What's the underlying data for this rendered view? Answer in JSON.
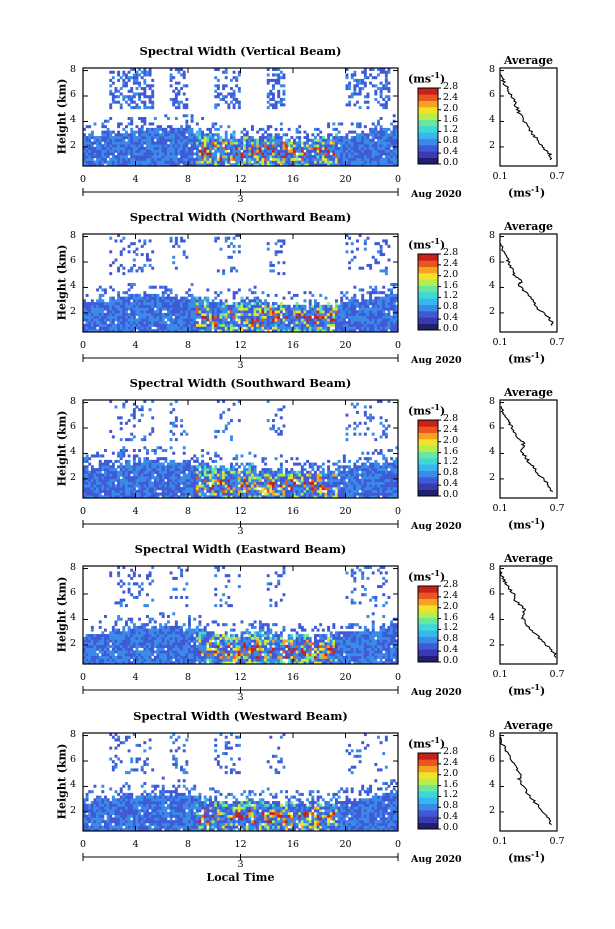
{
  "figure": {
    "ylabel": "Height (km)",
    "colorbar_unit": "(ms",
    "colorbar_unit_exp": "-1",
    "avg_title": "Average",
    "avg_xlabel": "(ms",
    "avg_xlabel_exp": "-1",
    "date_label": "Aug 2020",
    "day_label": "3",
    "xaxis_title": "Local Time",
    "colors": {
      "scale": [
        "#1f1f6e",
        "#3a3ab0",
        "#3f5ad6",
        "#3a8ae8",
        "#36b7ef",
        "#3fd8d8",
        "#6ae6a0",
        "#b8ee4a",
        "#f2e22a",
        "#f6a324",
        "#ea5520",
        "#c8201a"
      ],
      "missing": "#ffffff"
    }
  },
  "chart_data": [
    {
      "type": "heatmap",
      "title": "Spectral Width (Vertical Beam)",
      "xlabel": "",
      "ylabel": "Height (km)",
      "xticks": [
        "0",
        "4",
        "8",
        "12",
        "16",
        "20",
        "0"
      ],
      "yticks": [
        "2",
        "4",
        "6",
        "8"
      ],
      "xlim": [
        0,
        24
      ],
      "ylim": [
        0.5,
        8.2
      ],
      "colorbar": {
        "label": "(ms-1)",
        "ticks": [
          "2.8",
          "2.4",
          "2.0",
          "1.6",
          "1.2",
          "0.8",
          "0.4",
          "0.0"
        ],
        "range": [
          0.0,
          2.8
        ]
      },
      "average": {
        "title": "Average",
        "xticks": [
          "0.1",
          "0.7"
        ],
        "yticks": [
          "2",
          "4",
          "6",
          "8"
        ],
        "xlim": [
          0.1,
          0.7
        ],
        "ylim": [
          0.5,
          8.2
        ],
        "profile": [
          [
            0.64,
            1.0
          ],
          [
            0.62,
            1.5
          ],
          [
            0.55,
            2.0
          ],
          [
            0.48,
            2.7
          ],
          [
            0.42,
            3.3
          ],
          [
            0.36,
            4.0
          ],
          [
            0.3,
            4.7
          ],
          [
            0.26,
            5.4
          ],
          [
            0.22,
            6.0
          ],
          [
            0.18,
            6.6
          ],
          [
            0.13,
            7.2
          ],
          [
            0.1,
            7.8
          ]
        ]
      },
      "xtick_day": "3",
      "date": "Aug 2020"
    },
    {
      "type": "heatmap",
      "title": "Spectral Width (Northward Beam)",
      "xlabel": "",
      "ylabel": "Height (km)",
      "xticks": [
        "0",
        "4",
        "8",
        "12",
        "16",
        "20",
        "0"
      ],
      "yticks": [
        "2",
        "4",
        "6",
        "8"
      ],
      "xlim": [
        0,
        24
      ],
      "ylim": [
        0.5,
        8.2
      ],
      "colorbar": {
        "label": "(ms-1)",
        "ticks": [
          "2.8",
          "2.4",
          "2.0",
          "1.6",
          "1.2",
          "0.8",
          "0.4",
          "0.0"
        ],
        "range": [
          0.0,
          2.8
        ]
      },
      "average": {
        "title": "Average",
        "xticks": [
          "0.1",
          "0.7"
        ],
        "yticks": [
          "2",
          "4",
          "6",
          "8"
        ],
        "xlim": [
          0.1,
          0.7
        ],
        "ylim": [
          0.5,
          8.2
        ],
        "profile": [
          [
            0.66,
            1.0
          ],
          [
            0.62,
            1.6
          ],
          [
            0.5,
            2.3
          ],
          [
            0.44,
            3.0
          ],
          [
            0.36,
            3.7
          ],
          [
            0.3,
            4.2
          ],
          [
            0.33,
            4.5
          ],
          [
            0.25,
            5.0
          ],
          [
            0.22,
            5.6
          ],
          [
            0.18,
            6.2
          ],
          [
            0.14,
            6.8
          ],
          [
            0.1,
            7.6
          ]
        ]
      },
      "xtick_day": "3",
      "date": "Aug 2020"
    },
    {
      "type": "heatmap",
      "title": "Spectral Width (Southward Beam)",
      "xlabel": "",
      "ylabel": "Height (km)",
      "xticks": [
        "0",
        "4",
        "8",
        "12",
        "16",
        "20",
        "0"
      ],
      "yticks": [
        "2",
        "4",
        "6",
        "8"
      ],
      "xlim": [
        0,
        24
      ],
      "ylim": [
        0.5,
        8.2
      ],
      "colorbar": {
        "label": "(ms-1)",
        "ticks": [
          "2.8",
          "2.4",
          "2.0",
          "1.6",
          "1.2",
          "0.8",
          "0.4",
          "0.0"
        ],
        "range": [
          0.0,
          2.8
        ]
      },
      "average": {
        "title": "Average",
        "xticks": [
          "0.1",
          "0.7"
        ],
        "yticks": [
          "2",
          "4",
          "6",
          "8"
        ],
        "xlim": [
          0.1,
          0.7
        ],
        "ylim": [
          0.5,
          8.2
        ],
        "profile": [
          [
            0.64,
            1.0
          ],
          [
            0.6,
            1.6
          ],
          [
            0.52,
            2.3
          ],
          [
            0.44,
            3.0
          ],
          [
            0.38,
            3.6
          ],
          [
            0.33,
            4.2
          ],
          [
            0.35,
            4.8
          ],
          [
            0.28,
            5.4
          ],
          [
            0.23,
            6.0
          ],
          [
            0.18,
            6.6
          ],
          [
            0.13,
            7.2
          ],
          [
            0.1,
            7.8
          ]
        ]
      },
      "xtick_day": "3",
      "date": "Aug 2020"
    },
    {
      "type": "heatmap",
      "title": "Spectral Width (Eastward Beam)",
      "xlabel": "",
      "ylabel": "Height (km)",
      "xticks": [
        "0",
        "4",
        "8",
        "12",
        "16",
        "20",
        "0"
      ],
      "yticks": [
        "2",
        "4",
        "6",
        "8"
      ],
      "xlim": [
        0,
        24
      ],
      "ylim": [
        0.5,
        8.2
      ],
      "colorbar": {
        "label": "(ms-1)",
        "ticks": [
          "2.8",
          "2.4",
          "2.0",
          "1.6",
          "1.2",
          "0.8",
          "0.4",
          "0.0"
        ],
        "range": [
          0.0,
          2.8
        ]
      },
      "average": {
        "title": "Average",
        "xticks": [
          "0.1",
          "0.7"
        ],
        "yticks": [
          "2",
          "4",
          "6",
          "8"
        ],
        "xlim": [
          0.1,
          0.7
        ],
        "ylim": [
          0.5,
          8.2
        ],
        "profile": [
          [
            0.7,
            1.0
          ],
          [
            0.64,
            1.6
          ],
          [
            0.54,
            2.3
          ],
          [
            0.46,
            3.0
          ],
          [
            0.38,
            3.6
          ],
          [
            0.33,
            4.2
          ],
          [
            0.36,
            4.8
          ],
          [
            0.27,
            5.4
          ],
          [
            0.24,
            6.0
          ],
          [
            0.18,
            6.6
          ],
          [
            0.13,
            7.2
          ],
          [
            0.1,
            7.9
          ]
        ]
      },
      "xtick_day": "3",
      "date": "Aug 2020"
    },
    {
      "type": "heatmap",
      "title": "Spectral Width (Westward Beam)",
      "xlabel": "Local Time",
      "ylabel": "Height (km)",
      "xticks": [
        "0",
        "4",
        "8",
        "12",
        "16",
        "20",
        "0"
      ],
      "yticks": [
        "2",
        "4",
        "6",
        "8"
      ],
      "xlim": [
        0,
        24
      ],
      "ylim": [
        0.5,
        8.2
      ],
      "colorbar": {
        "label": "(ms-1)",
        "ticks": [
          "2.8",
          "2.4",
          "2.0",
          "1.6",
          "1.2",
          "0.8",
          "0.4",
          "0.0"
        ],
        "range": [
          0.0,
          2.8
        ]
      },
      "average": {
        "title": "Average",
        "xticks": [
          "0.1",
          "0.7"
        ],
        "yticks": [
          "2",
          "4",
          "6",
          "8"
        ],
        "xlim": [
          0.1,
          0.7
        ],
        "ylim": [
          0.5,
          8.2
        ],
        "profile": [
          [
            0.64,
            1.0
          ],
          [
            0.6,
            1.6
          ],
          [
            0.52,
            2.3
          ],
          [
            0.44,
            3.0
          ],
          [
            0.36,
            3.8
          ],
          [
            0.3,
            4.5
          ],
          [
            0.32,
            5.0
          ],
          [
            0.26,
            5.6
          ],
          [
            0.22,
            6.2
          ],
          [
            0.17,
            6.8
          ],
          [
            0.12,
            7.4
          ],
          [
            0.1,
            8.0
          ]
        ]
      },
      "xtick_day": "3",
      "date": "Aug 2020"
    }
  ]
}
